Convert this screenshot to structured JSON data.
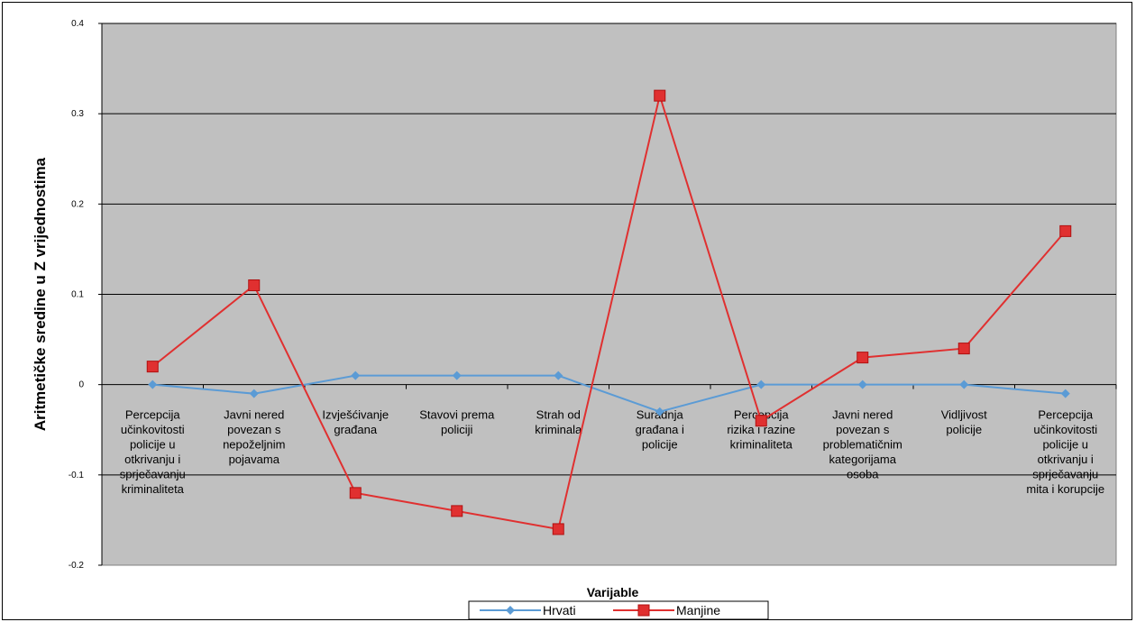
{
  "chart_data": {
    "type": "line",
    "title": "",
    "xlabel": "Varijable",
    "ylabel": "Aritmetičke sredine u Z vrijednostima",
    "ylim": [
      -0.2,
      0.4
    ],
    "yticks": [
      "-0.2",
      "-0.1",
      "0",
      "0.1",
      "0.2",
      "0.3",
      "0.4"
    ],
    "grid": true,
    "legend_position": "bottom",
    "categories": [
      "Percepcija učinkovitosti policije u otkrivanju i sprječavanju kriminaliteta",
      "Javni nered povezan s nepoželjnim pojavama",
      "Izvješćivanje građana",
      "Stavovi prema policiji",
      "Strah od kriminala",
      "Suradnja građana i policije",
      "Percepcija rizika i razine kriminaliteta",
      "Javni nered povezan s problematičnim kategorijama osoba",
      "Vidljivost policije",
      "Percepcija učinkovitosti policije u otkrivanju i sprječavanju mita i korupcije"
    ],
    "category_lines": [
      [
        "Percepcija",
        "učinkovitosti",
        "policije u",
        "otkrivanju i",
        "sprječavanju",
        "kriminaliteta"
      ],
      [
        "Javni nered",
        "povezan s",
        "nepoželjnim",
        "pojavama"
      ],
      [
        "Izvješćivanje",
        "građana"
      ],
      [
        "Stavovi prema",
        "policiji"
      ],
      [
        "Strah od",
        "kriminala"
      ],
      [
        "Suradnja",
        "građana i",
        "policije"
      ],
      [
        "Percepcija",
        "rizika i razine",
        "kriminaliteta"
      ],
      [
        "Javni nered",
        "povezan s",
        "problematičnim",
        "kategorijama",
        "osoba"
      ],
      [
        "Vidljivost",
        "policije"
      ],
      [
        "Percepcija",
        "učinkovitosti",
        "policije u",
        "otkrivanju i",
        "sprječavanju",
        "mita i korupcije"
      ]
    ],
    "series": [
      {
        "name": "Hrvati",
        "color": "#5b9bd5",
        "marker": "diamond",
        "values": [
          0,
          -0.01,
          0.01,
          0.01,
          0.01,
          -0.03,
          0,
          0,
          0,
          -0.01
        ]
      },
      {
        "name": "Manjine",
        "color": "#e03030",
        "marker": "square",
        "values": [
          0.02,
          0.11,
          -0.12,
          -0.14,
          -0.16,
          0.32,
          -0.04,
          0.03,
          0.04,
          0.17
        ]
      }
    ]
  }
}
